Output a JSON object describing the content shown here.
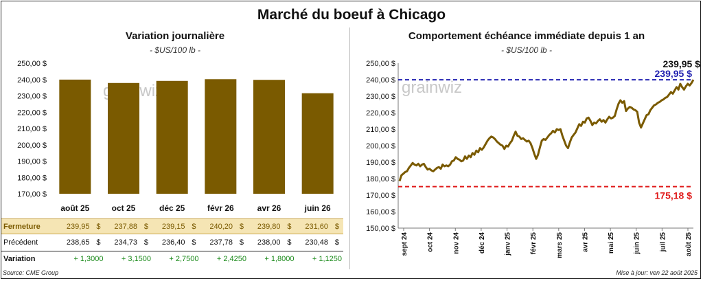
{
  "title": "Marché du boeuf à Chicago",
  "left": {
    "subtitle": "Variation journalière",
    "unit": "- $US/100 lb -",
    "watermark": "grainwiz",
    "chart_data": {
      "type": "bar",
      "categories": [
        "août 25",
        "oct 25",
        "déc 25",
        "févr 26",
        "avr 26",
        "juin 26"
      ],
      "values": [
        239.95,
        237.88,
        239.15,
        240.2,
        239.8,
        231.6
      ],
      "ylim": [
        170,
        250
      ],
      "yticks": [
        "250,00 $",
        "240,00 $",
        "230,00 $",
        "220,00 $",
        "210,00 $",
        "200,00 $",
        "190,00 $",
        "180,00 $",
        "170,00 $"
      ],
      "bar_color": "#7a5a00"
    },
    "table": {
      "rows": [
        {
          "label": "Fermeture",
          "values": [
            "239,95",
            "237,88",
            "239,15",
            "240,20",
            "239,80",
            "231,60"
          ],
          "currency": "$"
        },
        {
          "label": "Précédent",
          "values": [
            "238,65",
            "234,73",
            "236,40",
            "237,78",
            "238,00",
            "230,48"
          ],
          "currency": "$"
        },
        {
          "label": "Variation",
          "values": [
            "+ 1,3000",
            "+ 3,1500",
            "+ 2,7500",
            "+ 2,4250",
            "+ 1,8000",
            "+ 1,1250"
          ]
        }
      ]
    }
  },
  "right": {
    "subtitle": "Comportement  échéance immédiate depuis 1 an",
    "unit": "- $US/100 lb -",
    "watermark": "grainwiz",
    "chart_data": {
      "type": "line",
      "ylim": [
        150,
        250
      ],
      "yticks": [
        "250,00 $",
        "240,00 $",
        "230,00 $",
        "220,00 $",
        "210,00 $",
        "200,00 $",
        "190,00 $",
        "180,00 $",
        "170,00 $",
        "160,00 $",
        "150,00 $"
      ],
      "xticks": [
        "sept 24",
        "oct 24",
        "nov 24",
        "déc 24",
        "janv 25",
        "févr 25",
        "mars 25",
        "avr 25",
        "mai 25",
        "juin 25",
        "juil 25",
        "août 25"
      ],
      "line_color": "#7a5a00",
      "values": [
        178.5,
        182.0,
        183.0,
        184.0,
        184.5,
        186.5,
        188.0,
        189.5,
        188.5,
        188.0,
        189.0,
        187.5,
        188.5,
        189.0,
        187.0,
        185.5,
        186.0,
        185.0,
        184.5,
        185.5,
        186.5,
        187.0,
        186.0,
        188.5,
        187.5,
        188.0,
        187.5,
        188.5,
        190.5,
        191.0,
        193.0,
        192.0,
        191.5,
        190.5,
        191.0,
        193.5,
        192.0,
        194.0,
        193.0,
        195.5,
        194.5,
        197.0,
        196.0,
        198.5,
        197.5,
        199.0,
        201.0,
        203.0,
        204.5,
        205.5,
        205.0,
        204.0,
        202.5,
        201.5,
        200.5,
        200.0,
        198.0,
        200.0,
        199.5,
        201.5,
        203.0,
        206.0,
        208.5,
        206.0,
        205.5,
        204.0,
        204.5,
        203.5,
        202.5,
        203.0,
        201.5,
        198.5,
        195.0,
        192.0,
        194.5,
        199.0,
        203.0,
        204.0,
        203.5,
        205.0,
        206.5,
        207.5,
        209.0,
        208.0,
        210.0,
        209.5,
        210.0,
        206.0,
        203.0,
        200.0,
        198.5,
        202.0,
        205.0,
        206.5,
        208.0,
        210.5,
        213.0,
        212.0,
        214.5,
        214.0,
        216.5,
        217.0,
        215.0,
        212.5,
        214.0,
        213.5,
        215.0,
        216.0,
        214.5,
        215.5,
        214.0,
        216.0,
        217.5,
        216.5,
        217.0,
        218.0,
        222.0,
        225.5,
        227.5,
        226.0,
        227.0,
        221.0,
        222.5,
        223.5,
        223.0,
        222.0,
        221.5,
        220.5,
        214.0,
        211.0,
        213.5,
        216.0,
        218.5,
        219.0,
        221.5,
        223.0,
        224.5,
        225.0,
        226.0,
        226.5,
        227.5,
        228.0,
        229.0,
        229.5,
        231.0,
        232.5,
        231.5,
        233.5,
        235.5,
        234.0,
        237.5,
        235.5,
        234.0,
        236.0,
        237.5,
        236.5,
        238.0,
        239.95
      ],
      "ref_lines": [
        {
          "value": 239.95,
          "label": "239,95 $",
          "color": "#2020b0",
          "style": "dashed"
        },
        {
          "value": 175.18,
          "label": "175,18 $",
          "color": "#e01a1a",
          "style": "dashed"
        }
      ],
      "last_label": "239,95 $"
    }
  },
  "footer": {
    "source": "Source: CME Group",
    "updated": "Mise à jour: ven 22 août 2025"
  }
}
